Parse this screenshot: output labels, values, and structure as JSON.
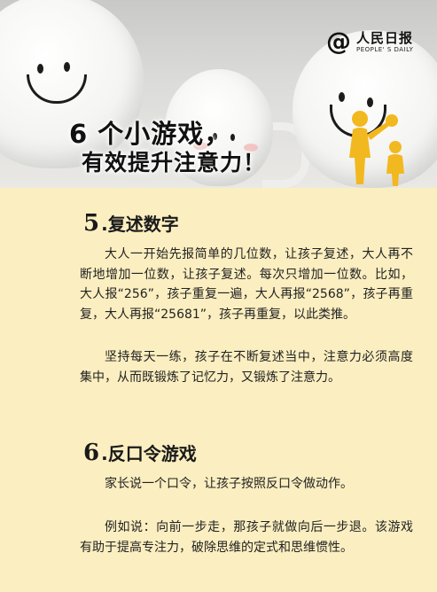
{
  "header": {
    "logo_symbol": "@",
    "logo_cn": "人民日报",
    "logo_en": "PEOPLE' S DAILY",
    "title_line1": "6 个小游戏，",
    "title_line2": "有效提升注意力！"
  },
  "sections": [
    {
      "number": "5",
      "title": ".复述数字",
      "paragraphs": [
        "大人一开始先报简单的几位数，让孩子复述，大人再不断地增加一位数，让孩子复述。每次只增加一位数。比如，大人报“256”，孩子重复一遍，大人再报“2568”，孩子再重复，大人再报“25681”，孩子再重复，以此类推。",
        "坚持每天一练，孩子在不断复述当中，注意力必须高度集中，从而既锻炼了记忆力，又锻炼了注意力。"
      ]
    },
    {
      "number": "6",
      "title": ".反口令游戏",
      "paragraphs": [
        "家长说一个口令，让孩子按照反口令做动作。",
        "例如说：向前一步走，那孩子就做向后一步退。该游戏有助于提高专注力，破除思维的定式和思维惯性。"
      ]
    }
  ]
}
